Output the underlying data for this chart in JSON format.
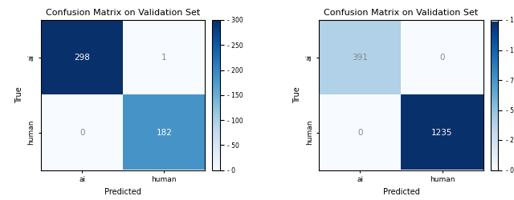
{
  "title": "Confusion Matrix on Validation Set",
  "labels": [
    "ai",
    "human"
  ],
  "matrix1": [
    [
      298,
      1
    ],
    [
      0,
      182
    ]
  ],
  "matrix2": [
    [
      391,
      0
    ],
    [
      0,
      1235
    ]
  ],
  "xlabel": "Predicted",
  "ylabel": "True",
  "cmap": "Blues",
  "fontsize_title": 8,
  "fontsize_labels": 7,
  "fontsize_ticks": 6.5,
  "fontsize_values": 7.5
}
